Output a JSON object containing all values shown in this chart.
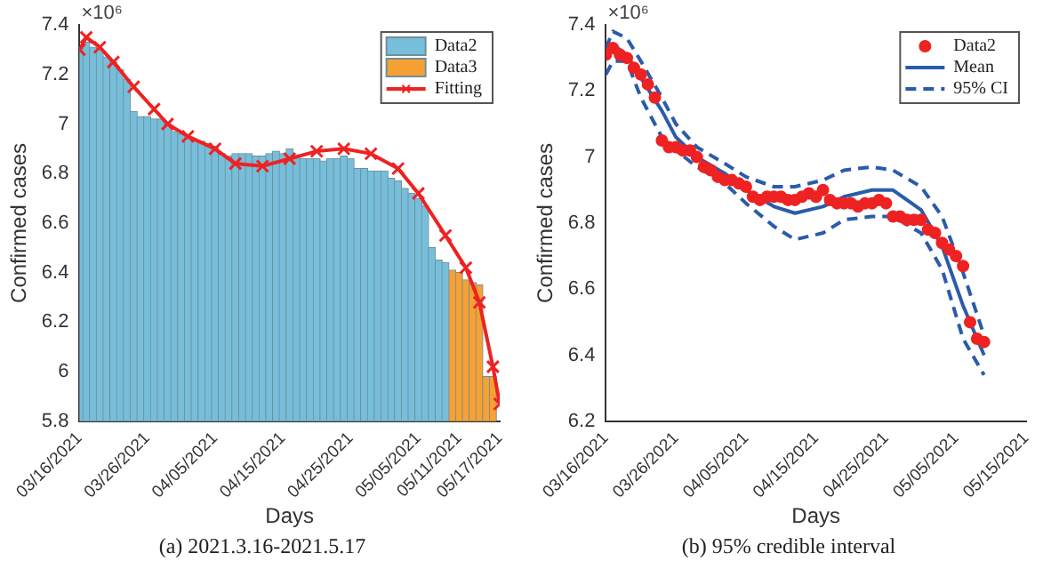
{
  "chart_data": [
    {
      "type": "bar",
      "xlabel": "Days",
      "ylabel": "Confirmed cases",
      "annotations": [
        "×10⁶",
        "(a)  2021.3.16-2021.5.17"
      ],
      "xlim": [
        "2021-03-16",
        "2021-05-17"
      ],
      "xticks": [
        {
          "value": "2021-03-16",
          "label": "03/16/2021"
        },
        {
          "value": "2021-03-26",
          "label": "03/26/2021"
        },
        {
          "value": "2021-04-05",
          "label": "04/05/2021"
        },
        {
          "value": "2021-04-15",
          "label": "04/15/2021"
        },
        {
          "value": "2021-04-25",
          "label": "04/25/2021"
        },
        {
          "value": "2021-05-05",
          "label": "05/05/2021"
        },
        {
          "value": "2021-05-11",
          "label": "05/11/2021"
        },
        {
          "value": "2021-05-17",
          "label": "05/17/2021"
        }
      ],
      "ylim": [
        5.8,
        7.4
      ],
      "yticks": [
        5.8,
        6,
        6.2,
        6.4,
        6.6,
        6.8,
        7,
        7.2,
        7.4
      ],
      "grid": false,
      "legend": "top right",
      "series": [
        {
          "name": "Data2",
          "color": "#77bedb",
          "x": [
            "2021-03-16",
            "2021-03-17",
            "2021-03-18",
            "2021-03-19",
            "2021-03-20",
            "2021-03-21",
            "2021-03-22",
            "2021-03-23",
            "2021-03-24",
            "2021-03-25",
            "2021-03-26",
            "2021-03-27",
            "2021-03-28",
            "2021-03-29",
            "2021-03-30",
            "2021-03-31",
            "2021-04-01",
            "2021-04-02",
            "2021-04-03",
            "2021-04-04",
            "2021-04-05",
            "2021-04-06",
            "2021-04-07",
            "2021-04-08",
            "2021-04-09",
            "2021-04-10",
            "2021-04-11",
            "2021-04-12",
            "2021-04-13",
            "2021-04-14",
            "2021-04-15",
            "2021-04-16",
            "2021-04-17",
            "2021-04-18",
            "2021-04-19",
            "2021-04-20",
            "2021-04-21",
            "2021-04-22",
            "2021-04-23",
            "2021-04-24",
            "2021-04-25",
            "2021-04-26",
            "2021-04-27",
            "2021-04-28",
            "2021-04-29",
            "2021-04-30",
            "2021-05-01",
            "2021-05-02",
            "2021-05-03",
            "2021-05-04",
            "2021-05-05",
            "2021-05-06",
            "2021-05-07",
            "2021-05-08",
            "2021-05-09"
          ],
          "values": [
            7.31,
            7.33,
            7.31,
            7.3,
            7.27,
            7.25,
            7.22,
            7.18,
            7.05,
            7.03,
            7.03,
            7.02,
            7.02,
            7,
            6.97,
            6.96,
            6.94,
            6.93,
            6.93,
            6.92,
            6.91,
            6.88,
            6.87,
            6.88,
            6.88,
            6.88,
            6.87,
            6.87,
            6.88,
            6.89,
            6.88,
            6.9,
            6.87,
            6.86,
            6.86,
            6.86,
            6.85,
            6.86,
            6.86,
            6.87,
            6.86,
            6.82,
            6.82,
            6.81,
            6.81,
            6.81,
            6.78,
            6.77,
            6.74,
            6.72,
            6.7,
            6.67,
            6.5,
            6.45,
            6.44
          ]
        },
        {
          "name": "Data3",
          "color": "#f7a033",
          "x": [
            "2021-05-10",
            "2021-05-11",
            "2021-05-12",
            "2021-05-13",
            "2021-05-14",
            "2021-05-15",
            "2021-05-16"
          ],
          "values": [
            6.41,
            6.4,
            6.37,
            6.36,
            6.35,
            5.98,
            5.98
          ]
        },
        {
          "name": "Fitting",
          "type": "line",
          "color": "#ee2222",
          "marker": "cross",
          "line_style": "solid",
          "x": [
            "2021-03-16",
            "2021-03-17",
            "2021-03-19",
            "2021-03-21",
            "2021-03-24",
            "2021-03-27",
            "2021-03-29",
            "2021-04-01",
            "2021-04-05",
            "2021-04-08",
            "2021-04-12",
            "2021-04-16",
            "2021-04-20",
            "2021-04-24",
            "2021-04-28",
            "2021-05-02",
            "2021-05-05",
            "2021-05-09",
            "2021-05-12",
            "2021-05-14",
            "2021-05-16",
            "2021-05-17"
          ],
          "values": [
            7.3,
            7.35,
            7.31,
            7.25,
            7.15,
            7.06,
            7,
            6.95,
            6.9,
            6.84,
            6.83,
            6.86,
            6.89,
            6.9,
            6.88,
            6.82,
            6.72,
            6.55,
            6.42,
            6.28,
            6.02,
            5.87
          ]
        }
      ]
    },
    {
      "type": "line",
      "xlabel": "Days",
      "ylabel": "Confirmed cases",
      "annotations": [
        "×10⁶",
        "(b)  95% credible interval"
      ],
      "xlim": [
        "2021-03-16",
        "2021-05-15"
      ],
      "xticks": [
        {
          "value": "2021-03-16",
          "label": "03/16/2021"
        },
        {
          "value": "2021-03-26",
          "label": "03/26/2021"
        },
        {
          "value": "2021-04-05",
          "label": "04/05/2021"
        },
        {
          "value": "2021-04-15",
          "label": "04/15/2021"
        },
        {
          "value": "2021-04-25",
          "label": "04/25/2021"
        },
        {
          "value": "2021-05-05",
          "label": "05/05/2021"
        },
        {
          "value": "2021-05-15",
          "label": "05/15/2021"
        }
      ],
      "ylim": [
        6.2,
        7.4
      ],
      "yticks": [
        6.2,
        6.4,
        6.6,
        6.8,
        7,
        7.2,
        7.4
      ],
      "grid": false,
      "legend": "top right",
      "series": [
        {
          "name": "Data2",
          "type": "scatter",
          "color": "#ee2222",
          "marker": "circle",
          "x": [
            "2021-03-16",
            "2021-03-17",
            "2021-03-18",
            "2021-03-19",
            "2021-03-20",
            "2021-03-21",
            "2021-03-22",
            "2021-03-23",
            "2021-03-24",
            "2021-03-25",
            "2021-03-26",
            "2021-03-27",
            "2021-03-28",
            "2021-03-29",
            "2021-03-30",
            "2021-03-31",
            "2021-04-01",
            "2021-04-02",
            "2021-04-03",
            "2021-04-04",
            "2021-04-05",
            "2021-04-06",
            "2021-04-07",
            "2021-04-08",
            "2021-04-09",
            "2021-04-10",
            "2021-04-11",
            "2021-04-12",
            "2021-04-13",
            "2021-04-14",
            "2021-04-15",
            "2021-04-16",
            "2021-04-17",
            "2021-04-18",
            "2021-04-19",
            "2021-04-20",
            "2021-04-21",
            "2021-04-22",
            "2021-04-23",
            "2021-04-24",
            "2021-04-25",
            "2021-04-26",
            "2021-04-27",
            "2021-04-28",
            "2021-04-29",
            "2021-04-30",
            "2021-05-01",
            "2021-05-02",
            "2021-05-03",
            "2021-05-04",
            "2021-05-05",
            "2021-05-06",
            "2021-05-07",
            "2021-05-08",
            "2021-05-09"
          ],
          "values": [
            7.31,
            7.33,
            7.31,
            7.3,
            7.27,
            7.25,
            7.22,
            7.18,
            7.05,
            7.03,
            7.03,
            7.02,
            7.02,
            7,
            6.97,
            6.96,
            6.94,
            6.93,
            6.93,
            6.92,
            6.91,
            6.88,
            6.87,
            6.88,
            6.88,
            6.88,
            6.87,
            6.87,
            6.88,
            6.89,
            6.88,
            6.9,
            6.87,
            6.86,
            6.86,
            6.86,
            6.85,
            6.86,
            6.86,
            6.87,
            6.86,
            6.82,
            6.82,
            6.81,
            6.81,
            6.81,
            6.78,
            6.77,
            6.74,
            6.72,
            6.7,
            6.67,
            6.5,
            6.45,
            6.44
          ]
        },
        {
          "name": "Mean",
          "color": "#2a5caa",
          "marker": "none",
          "line_style": "solid",
          "x": [
            "2021-03-16",
            "2021-03-17",
            "2021-03-19",
            "2021-03-21",
            "2021-03-24",
            "2021-03-26",
            "2021-03-29",
            "2021-04-02",
            "2021-04-05",
            "2021-04-09",
            "2021-04-12",
            "2021-04-16",
            "2021-04-19",
            "2021-04-23",
            "2021-04-26",
            "2021-04-30",
            "2021-05-03",
            "2021-05-06",
            "2021-05-09"
          ],
          "values": [
            7.31,
            7.34,
            7.31,
            7.24,
            7.14,
            7.06,
            7,
            6.95,
            6.9,
            6.85,
            6.83,
            6.85,
            6.88,
            6.9,
            6.9,
            6.84,
            6.73,
            6.55,
            6.4
          ]
        },
        {
          "name": "95% CI",
          "color": "#2a5caa",
          "marker": "none",
          "line_style": "dashed",
          "x": [
            "2021-03-16",
            "2021-03-17",
            "2021-03-19",
            "2021-03-21",
            "2021-03-24",
            "2021-03-26",
            "2021-03-29",
            "2021-04-02",
            "2021-04-05",
            "2021-04-09",
            "2021-04-12",
            "2021-04-16",
            "2021-04-19",
            "2021-04-23",
            "2021-04-26",
            "2021-04-30",
            "2021-05-03",
            "2021-05-06",
            "2021-05-09"
          ],
          "values": [
            7.33,
            7.38,
            7.36,
            7.29,
            7.18,
            7.1,
            7.03,
            6.98,
            6.94,
            6.91,
            6.91,
            6.93,
            6.96,
            6.97,
            6.96,
            6.91,
            6.82,
            6.65,
            6.46
          ]
        },
        {
          "color": "#2a5caa",
          "marker": "none",
          "line_style": "dashed",
          "x": [
            "2021-03-16",
            "2021-03-17",
            "2021-03-19",
            "2021-03-21",
            "2021-03-24",
            "2021-03-26",
            "2021-03-29",
            "2021-04-02",
            "2021-04-05",
            "2021-04-09",
            "2021-04-12",
            "2021-04-16",
            "2021-04-19",
            "2021-04-23",
            "2021-04-26",
            "2021-04-30",
            "2021-05-03",
            "2021-05-06",
            "2021-05-09"
          ],
          "values": [
            7.25,
            7.29,
            7.29,
            7.18,
            7.06,
            7.02,
            6.97,
            6.92,
            6.86,
            6.79,
            6.75,
            6.77,
            6.81,
            6.82,
            6.82,
            6.77,
            6.66,
            6.45,
            6.34
          ]
        }
      ]
    }
  ]
}
